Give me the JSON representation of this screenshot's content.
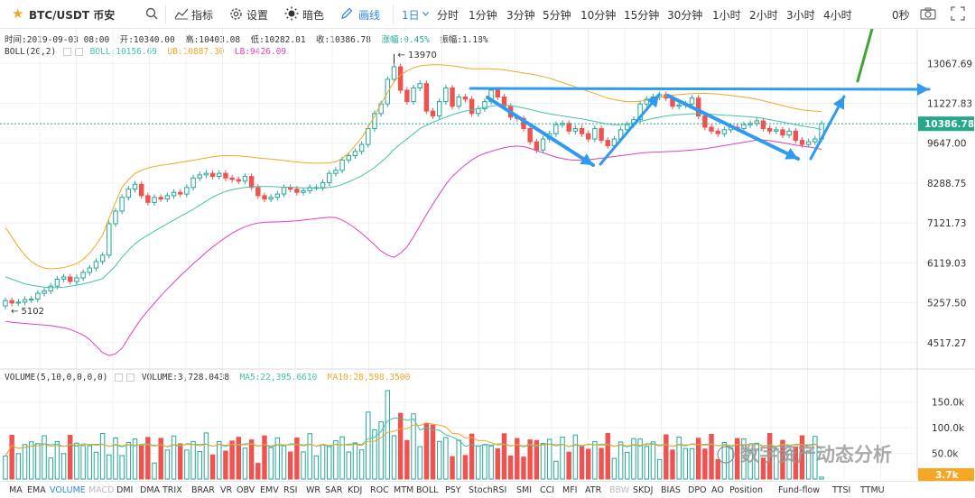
{
  "toolbar": {
    "pair": "BTC/USDT 币安",
    "indicators_label": "指标",
    "settings_label": "设置",
    "theme_label": "暗色",
    "draw_label": "画线",
    "active_interval": "1日",
    "intervals": [
      "分时",
      "1分钟",
      "3分钟",
      "5分钟",
      "10分钟",
      "15分钟",
      "30分钟",
      "1小时",
      "2小时",
      "3小时",
      "4小时"
    ],
    "countdown": "0秒"
  },
  "ohlc": {
    "time": "时间:2019-09-03 08:00",
    "open": "开:10340.00",
    "high": "高:10403.08",
    "low": "低:10282.01",
    "close": "收:10386.78",
    "change": "涨幅:0.45%",
    "amplitude": "振幅:1.18%"
  },
  "boll": {
    "label": "BOLL(20,2)",
    "mid": "BOLL:10156.69",
    "ub": "UB:10887.30",
    "lb": "LB:9426.09"
  },
  "volume_info": {
    "label": "VOLUME(5,10,0,0,0,0)",
    "volume": "VOLUME:3,728.0438",
    "ma5": "MA5:22,395.6610",
    "ma10": "MA10:28,598.3500"
  },
  "colors": {
    "up": "#26a69a",
    "down": "#ef5350",
    "boll_mid": "#42c3a8",
    "boll_ub": "#f5a623",
    "boll_lb": "#e040c0",
    "blue_accent": "#2f8ae8",
    "arrow_blue": "#2e9bf0",
    "arrow_green": "#3fa535",
    "last_price_bg": "#24a889",
    "last_vol_bg": "#f5a623"
  },
  "bottom_tabs": [
    {
      "label": "MA",
      "state": "normal"
    },
    {
      "label": "EMA",
      "state": "normal"
    },
    {
      "label": "VOLUME",
      "state": "active"
    },
    {
      "label": "MACD",
      "state": "disabled"
    },
    {
      "label": "DMI",
      "state": "normal"
    },
    {
      "label": "DMA",
      "state": "normal"
    },
    {
      "label": "TRIX",
      "state": "normal"
    },
    {
      "label": "BRAR",
      "state": "normal"
    },
    {
      "label": "VR",
      "state": "normal"
    },
    {
      "label": "OBV",
      "state": "normal"
    },
    {
      "label": "EMV",
      "state": "normal"
    },
    {
      "label": "RSI",
      "state": "normal"
    },
    {
      "label": "WR",
      "state": "normal"
    },
    {
      "label": "SAR",
      "state": "normal"
    },
    {
      "label": "KDJ",
      "state": "normal"
    },
    {
      "label": "ROC",
      "state": "normal"
    },
    {
      "label": "MTM",
      "state": "normal"
    },
    {
      "label": "BOLL",
      "state": "normal"
    },
    {
      "label": "PSY",
      "state": "normal"
    },
    {
      "label": "StochRSI",
      "state": "normal"
    },
    {
      "label": "SMI",
      "state": "normal"
    },
    {
      "label": "CCI",
      "state": "normal"
    },
    {
      "label": "MFI",
      "state": "normal"
    },
    {
      "label": "ATR",
      "state": "normal"
    },
    {
      "label": "BBW",
      "state": "disabled"
    },
    {
      "label": "SKDJ",
      "state": "normal"
    },
    {
      "label": "BIAS",
      "state": "normal"
    },
    {
      "label": "DPO",
      "state": "normal"
    },
    {
      "label": "AO",
      "state": "normal"
    },
    {
      "label": "Position",
      "state": "normal"
    },
    {
      "label": "Fund-flow",
      "state": "normal"
    },
    {
      "label": "TTSI",
      "state": "normal"
    },
    {
      "label": "TTMU",
      "state": "normal"
    }
  ],
  "watermark": "数字资产动态分析",
  "chart_data": [
    {
      "type": "candlestick",
      "price_axis_ticks": [
        "13067.69",
        "11227.83",
        "9647.00",
        "8288.75",
        "7121.73",
        "6119.03",
        "5257.50",
        "4517.27"
      ],
      "last_price": "10386.78",
      "high_marker": "13970",
      "low_marker": "5102",
      "closes": [
        5300,
        5250,
        5270,
        5320,
        5330,
        5450,
        5500,
        5600,
        5750,
        5800,
        5700,
        5780,
        5900,
        6000,
        6150,
        6300,
        7100,
        7450,
        7850,
        8100,
        8250,
        7900,
        7700,
        7850,
        7800,
        7900,
        8000,
        7950,
        8150,
        8450,
        8550,
        8600,
        8500,
        8600,
        8450,
        8400,
        8350,
        8500,
        8150,
        7900,
        7800,
        7850,
        7950,
        8150,
        8100,
        8000,
        8050,
        8150,
        8150,
        8300,
        8600,
        8700,
        9050,
        9200,
        9350,
        9600,
        10200,
        10800,
        11200,
        12300,
        12900,
        11800,
        11300,
        11900,
        12100,
        10900,
        10700,
        11300,
        11900,
        11100,
        11500,
        11400,
        10800,
        11000,
        11300,
        11800,
        11500,
        11100,
        10650,
        10600,
        10200,
        9700,
        9400,
        9800,
        10000,
        10350,
        10400,
        10100,
        10200,
        10000,
        9800,
        10200,
        9750,
        9550,
        9800,
        10150,
        10350,
        10550,
        11200,
        11400,
        11500,
        11600,
        11450,
        11100,
        11150,
        11200,
        11450,
        10700,
        10250,
        10100,
        10000,
        10150,
        10250,
        10200,
        10350,
        10400,
        10500,
        10200,
        10100,
        10150,
        9950,
        10100,
        9750,
        9600,
        9700,
        9800,
        10390
      ],
      "boll_mid": [
        5800,
        5750,
        5700,
        5650,
        5620,
        5600,
        5580,
        5570,
        5570,
        5580,
        5600,
        5620,
        5650,
        5680,
        5720,
        5760,
        5900,
        6050,
        6250,
        6420,
        6580,
        6700,
        6800,
        6900,
        7000,
        7100,
        7200,
        7300,
        7400,
        7500,
        7620,
        7740,
        7860,
        7950,
        8030,
        8080,
        8120,
        8150,
        8170,
        8180,
        8180,
        8180,
        8170,
        8160,
        8160,
        8150,
        8140,
        8140,
        8130,
        8130,
        8150,
        8180,
        8250,
        8330,
        8420,
        8520,
        8650,
        8800,
        8980,
        9180,
        9420,
        9620,
        9800,
        10000,
        10200,
        10330,
        10450,
        10550,
        10650,
        10750,
        10830,
        10900,
        10950,
        11000,
        11050,
        11100,
        11150,
        11150,
        11120,
        11080,
        11030,
        10970,
        10900,
        10840,
        10790,
        10740,
        10700,
        10660,
        10620,
        10580,
        10530,
        10480,
        10420,
        10370,
        10350,
        10350,
        10380,
        10420,
        10480,
        10540,
        10600,
        10650,
        10700,
        10730,
        10750,
        10770,
        10790,
        10790,
        10780,
        10770,
        10750,
        10730,
        10720,
        10700,
        10680,
        10660,
        10640,
        10600,
        10550,
        10500,
        10450,
        10400,
        10350,
        10300,
        10260,
        10220,
        10160
      ],
      "boll_ub": [
        7000,
        6750,
        6500,
        6300,
        6150,
        6050,
        6000,
        5980,
        5990,
        6010,
        6050,
        6100,
        6200,
        6350,
        6550,
        6800,
        7250,
        7700,
        8150,
        8400,
        8600,
        8700,
        8780,
        8830,
        8870,
        8900,
        8930,
        8970,
        9000,
        9040,
        9080,
        9120,
        9160,
        9190,
        9200,
        9200,
        9190,
        9170,
        9150,
        9120,
        9100,
        9080,
        9060,
        9030,
        9000,
        8980,
        8960,
        8950,
        8940,
        8940,
        8950,
        8990,
        9100,
        9300,
        9550,
        9850,
        10250,
        10700,
        11200,
        11700,
        12200,
        12500,
        12700,
        12850,
        12950,
        12980,
        13000,
        13000,
        12980,
        12950,
        12900,
        12850,
        12800,
        12800,
        12800,
        12800,
        12780,
        12750,
        12700,
        12650,
        12600,
        12550,
        12500,
        12430,
        12350,
        12250,
        12150,
        12050,
        11950,
        11850,
        11750,
        11650,
        11550,
        11450,
        11380,
        11330,
        11300,
        11300,
        11320,
        11360,
        11420,
        11480,
        11540,
        11580,
        11610,
        11630,
        11650,
        11660,
        11660,
        11650,
        11630,
        11600,
        11570,
        11530,
        11490,
        11450,
        11400,
        11340,
        11270,
        11200,
        11130,
        11060,
        11000,
        10950,
        10920,
        10900,
        10887
      ],
      "boll_lb": [
        4900,
        4880,
        4870,
        4860,
        4850,
        4840,
        4830,
        4820,
        4800,
        4780,
        4750,
        4700,
        4650,
        4570,
        4460,
        4350,
        4300,
        4330,
        4420,
        4600,
        4780,
        4950,
        5100,
        5250,
        5400,
        5540,
        5680,
        5820,
        5960,
        6100,
        6230,
        6370,
        6500,
        6620,
        6740,
        6850,
        6940,
        7020,
        7080,
        7120,
        7140,
        7150,
        7150,
        7160,
        7170,
        7180,
        7200,
        7220,
        7240,
        7260,
        7280,
        7270,
        7200,
        7100,
        6980,
        6850,
        6700,
        6550,
        6400,
        6300,
        6250,
        6350,
        6500,
        6750,
        7050,
        7350,
        7650,
        7950,
        8250,
        8500,
        8700,
        8880,
        9050,
        9180,
        9280,
        9350,
        9420,
        9480,
        9520,
        9540,
        9520,
        9460,
        9380,
        9300,
        9220,
        9150,
        9100,
        9060,
        9040,
        9040,
        9060,
        9080,
        9110,
        9140,
        9170,
        9200,
        9230,
        9260,
        9290,
        9310,
        9320,
        9330,
        9340,
        9350,
        9360,
        9380,
        9400,
        9420,
        9450,
        9480,
        9520,
        9560,
        9600,
        9640,
        9680,
        9720,
        9760,
        9760,
        9740,
        9700,
        9660,
        9620,
        9580,
        9540,
        9510,
        9470,
        9426
      ],
      "bbox_note": "price chart"
    },
    {
      "type": "bar",
      "volume_axis_ticks": [
        "150.0k",
        "100.0k",
        "50.0k"
      ],
      "last_volume": "3.7k"
    }
  ]
}
